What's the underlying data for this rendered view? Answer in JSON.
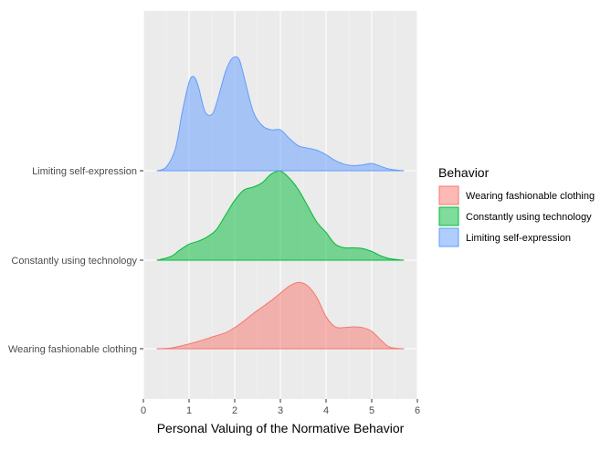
{
  "chart_data": {
    "type": "area",
    "subtype": "ridgeline-density",
    "xlabel": "Personal Valuing of the Normative Behavior",
    "ylabel": "",
    "xlim": [
      0,
      6
    ],
    "x_ticks": [
      0,
      1,
      2,
      3,
      4,
      5,
      6
    ],
    "grid": true,
    "legend": {
      "title": "Behavior",
      "placement": "right"
    },
    "categories": [
      "Wearing fashionable clothing",
      "Constantly using technology",
      "Limiting self-expression"
    ],
    "series": [
      {
        "name": "Wearing fashionable clothing",
        "fill": "#F8766D",
        "x": [
          0.3,
          0.6,
          0.9,
          1.2,
          1.5,
          1.8,
          2.0,
          2.2,
          2.4,
          2.6,
          2.8,
          3.0,
          3.2,
          3.4,
          3.6,
          3.8,
          4.0,
          4.2,
          4.4,
          4.6,
          4.8,
          5.0,
          5.2,
          5.4,
          5.7
        ],
        "density": [
          0.0,
          0.01,
          0.05,
          0.1,
          0.16,
          0.22,
          0.29,
          0.38,
          0.48,
          0.57,
          0.66,
          0.76,
          0.86,
          0.91,
          0.86,
          0.7,
          0.44,
          0.3,
          0.29,
          0.3,
          0.29,
          0.24,
          0.12,
          0.02,
          0.0
        ]
      },
      {
        "name": "Constantly using technology",
        "fill": "#00BA38",
        "x": [
          0.3,
          0.6,
          0.8,
          1.0,
          1.2,
          1.4,
          1.6,
          1.8,
          2.0,
          2.2,
          2.4,
          2.6,
          2.8,
          3.0,
          3.2,
          3.4,
          3.6,
          3.8,
          4.0,
          4.2,
          4.4,
          4.6,
          4.8,
          5.0,
          5.2,
          5.4,
          5.7
        ],
        "density": [
          0.0,
          0.05,
          0.14,
          0.22,
          0.26,
          0.32,
          0.42,
          0.62,
          0.82,
          0.96,
          1.0,
          1.06,
          1.18,
          1.22,
          1.12,
          0.96,
          0.74,
          0.52,
          0.38,
          0.22,
          0.17,
          0.17,
          0.16,
          0.12,
          0.06,
          0.02,
          0.0
        ]
      },
      {
        "name": "Limiting self-expression",
        "fill": "#619CFF",
        "x": [
          0.3,
          0.5,
          0.7,
          0.85,
          1.0,
          1.1,
          1.2,
          1.35,
          1.5,
          1.6,
          1.7,
          1.8,
          1.9,
          2.0,
          2.1,
          2.2,
          2.4,
          2.6,
          2.8,
          3.0,
          3.2,
          3.4,
          3.6,
          3.8,
          4.0,
          4.2,
          4.4,
          4.6,
          4.8,
          5.0,
          5.2,
          5.4,
          5.7
        ],
        "density": [
          0.0,
          0.05,
          0.3,
          0.8,
          1.21,
          1.29,
          1.16,
          0.81,
          0.77,
          0.92,
          1.14,
          1.36,
          1.5,
          1.56,
          1.52,
          1.3,
          0.82,
          0.62,
          0.56,
          0.56,
          0.44,
          0.34,
          0.31,
          0.28,
          0.22,
          0.14,
          0.09,
          0.07,
          0.08,
          0.1,
          0.06,
          0.02,
          0.0
        ]
      }
    ]
  }
}
